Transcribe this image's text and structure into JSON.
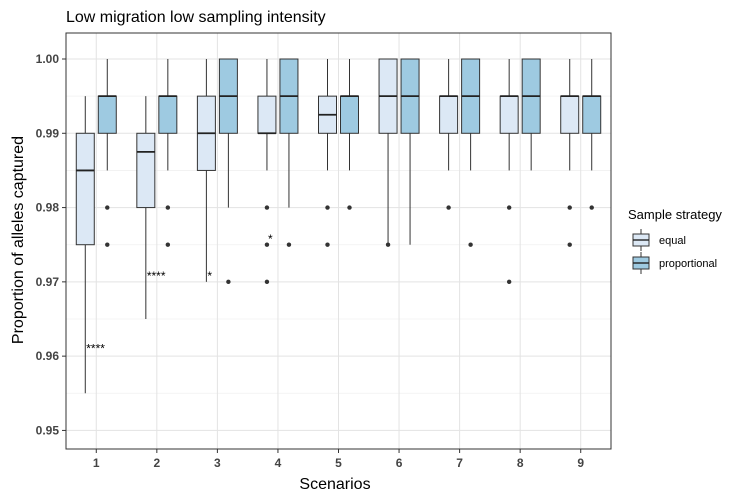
{
  "chart_data": {
    "type": "box",
    "title": "Low migration low sampling intensity",
    "xlabel": "Scenarios",
    "ylabel": "Proportion of alleles captured",
    "categories": [
      "1",
      "2",
      "3",
      "4",
      "5",
      "6",
      "7",
      "8",
      "9"
    ],
    "ylim": [
      0.9475,
      1.0035
    ],
    "yticks": [
      0.95,
      0.96,
      0.97,
      0.98,
      0.99,
      1.0
    ],
    "ytick_labels": [
      "0.95",
      "0.96",
      "0.97",
      "0.98",
      "0.99",
      "1.00"
    ],
    "grid": true,
    "legend": {
      "title": "Sample strategy",
      "position": "right",
      "entries": [
        "equal",
        "proportional"
      ]
    },
    "colors": {
      "equal": "#dce8f5",
      "proportional": "#9ecae1",
      "outline": "#333333"
    },
    "series": [
      {
        "name": "equal",
        "boxes": [
          {
            "category": "1",
            "low": 0.955,
            "q1": 0.975,
            "median": 0.985,
            "q3": 0.99,
            "high": 0.995,
            "outliers": []
          },
          {
            "category": "2",
            "low": 0.965,
            "q1": 0.98,
            "median": 0.9875,
            "q3": 0.99,
            "high": 0.995,
            "outliers": []
          },
          {
            "category": "3",
            "low": 0.97,
            "q1": 0.985,
            "median": 0.99,
            "q3": 0.995,
            "high": 1.0,
            "outliers": []
          },
          {
            "category": "4",
            "low": 0.985,
            "q1": 0.99,
            "median": 0.99,
            "q3": 0.995,
            "high": 1.0,
            "outliers": [
              0.98,
              0.975,
              0.97
            ]
          },
          {
            "category": "5",
            "low": 0.985,
            "q1": 0.99,
            "median": 0.9925,
            "q3": 0.995,
            "high": 1.0,
            "outliers": [
              0.98,
              0.975
            ]
          },
          {
            "category": "6",
            "low": 0.975,
            "q1": 0.99,
            "median": 0.995,
            "q3": 1.0,
            "high": 1.0,
            "outliers": [
              0.975
            ]
          },
          {
            "category": "7",
            "low": 0.985,
            "q1": 0.99,
            "median": 0.995,
            "q3": 0.995,
            "high": 1.0,
            "outliers": [
              0.98
            ]
          },
          {
            "category": "8",
            "low": 0.985,
            "q1": 0.99,
            "median": 0.995,
            "q3": 0.995,
            "high": 1.0,
            "outliers": [
              0.98,
              0.97
            ]
          },
          {
            "category": "9",
            "low": 0.985,
            "q1": 0.99,
            "median": 0.995,
            "q3": 0.995,
            "high": 1.0,
            "outliers": [
              0.98,
              0.975
            ]
          }
        ]
      },
      {
        "name": "proportional",
        "boxes": [
          {
            "category": "1",
            "low": 0.985,
            "q1": 0.99,
            "median": 0.995,
            "q3": 0.995,
            "high": 1.0,
            "outliers": [
              0.98,
              0.975
            ]
          },
          {
            "category": "2",
            "low": 0.985,
            "q1": 0.99,
            "median": 0.995,
            "q3": 0.995,
            "high": 1.0,
            "outliers": [
              0.98,
              0.975
            ]
          },
          {
            "category": "3",
            "low": 0.98,
            "q1": 0.99,
            "median": 0.995,
            "q3": 1.0,
            "high": 1.0,
            "outliers": [
              0.97
            ]
          },
          {
            "category": "4",
            "low": 0.98,
            "q1": 0.99,
            "median": 0.995,
            "q3": 1.0,
            "high": 1.0,
            "outliers": [
              0.975
            ]
          },
          {
            "category": "5",
            "low": 0.985,
            "q1": 0.99,
            "median": 0.995,
            "q3": 0.995,
            "high": 1.0,
            "outliers": [
              0.98
            ]
          },
          {
            "category": "6",
            "low": 0.975,
            "q1": 0.99,
            "median": 0.995,
            "q3": 1.0,
            "high": 1.0,
            "outliers": []
          },
          {
            "category": "7",
            "low": 0.985,
            "q1": 0.99,
            "median": 0.995,
            "q3": 1.0,
            "high": 1.0,
            "outliers": [
              0.975
            ]
          },
          {
            "category": "8",
            "low": 0.985,
            "q1": 0.99,
            "median": 0.995,
            "q3": 1.0,
            "high": 1.0,
            "outliers": []
          },
          {
            "category": "9",
            "low": 0.985,
            "q1": 0.99,
            "median": 0.995,
            "q3": 0.995,
            "high": 1.0,
            "outliers": [
              0.98
            ]
          }
        ]
      }
    ],
    "annotations": [
      {
        "text": "****",
        "x": "1",
        "y": 0.961
      },
      {
        "text": "****",
        "x": "2",
        "y": 0.9708
      },
      {
        "text": "*",
        "x": "3",
        "y": 0.9708
      },
      {
        "text": "*",
        "x": "4",
        "y": 0.9758
      }
    ]
  }
}
